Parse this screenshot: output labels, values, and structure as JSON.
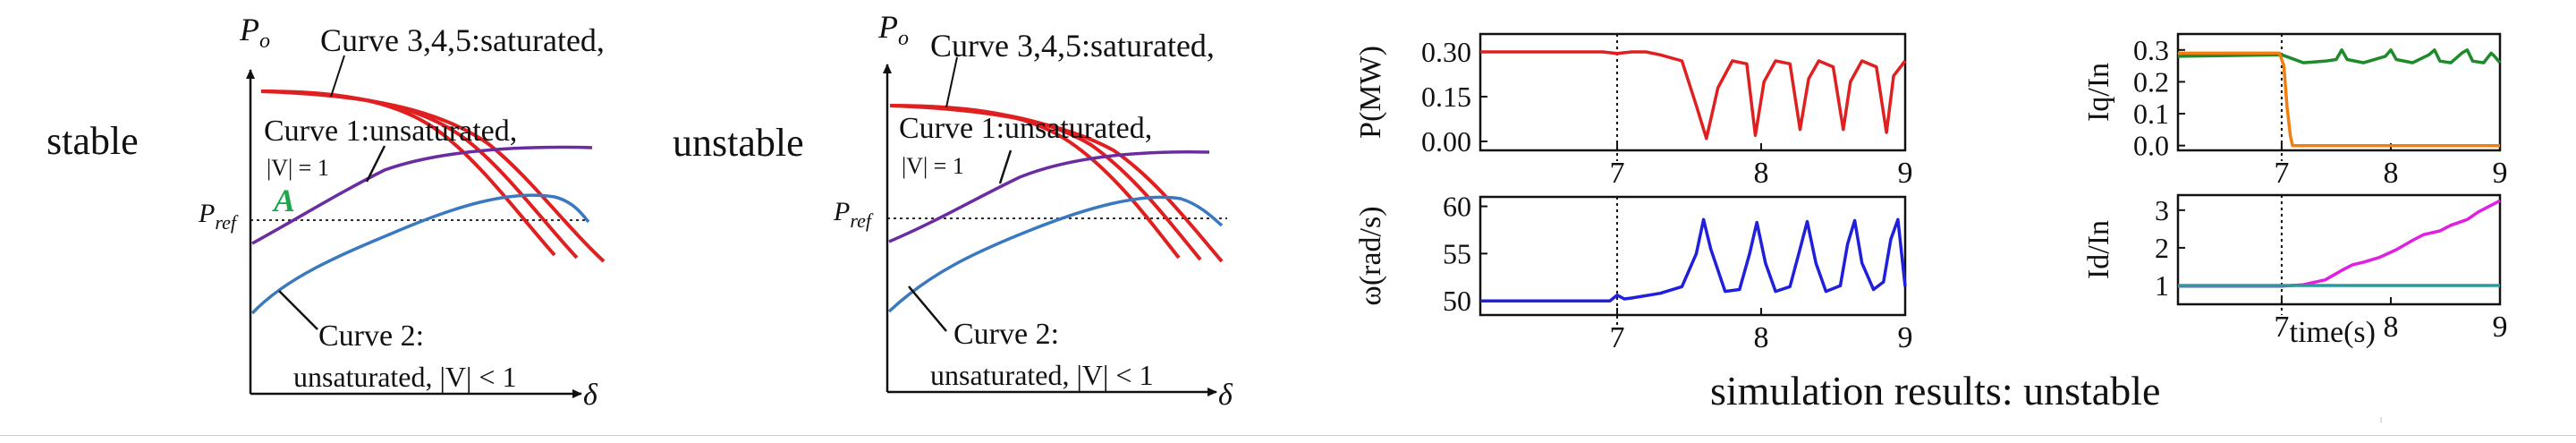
{
  "slide": {
    "left_panel": {
      "status_label": "stable",
      "y_label_main": "P",
      "y_label_sub": "o",
      "x_label": "δ",
      "pref_main": "P",
      "pref_sub": "ref",
      "point_label": "A",
      "curve345": "Curve 3,4,5:saturated,",
      "curve1_line1": "Curve 1:unsaturated,",
      "curve1_line2": "|V| = 1",
      "curve2_line1": "Curve 2:",
      "curve2_line2": "unsaturated, |V| < 1"
    },
    "middle_panel": {
      "status_label": "unstable",
      "y_label_main": "P",
      "y_label_sub": "o",
      "x_label": "δ",
      "pref_main": "P",
      "pref_sub": "ref",
      "curve345": "Curve 3,4,5:saturated,",
      "curve1_line1": "Curve 1:unsaturated,",
      "curve1_line2": "|V| = 1",
      "curve2_line1": "Curve 2:",
      "curve2_line2": "unsaturated, |V| < 1"
    },
    "results_caption": "simulation results: unstable",
    "page_number": "1",
    "colors": {
      "saturated": "#e02020",
      "unsaturated_v1": "#6a2ca0",
      "unsaturated_vlt1": "#3a78c0",
      "point_A": "#1ca84a",
      "p_trace": "#e02020",
      "omega_trace": "#1f1fdc",
      "iq_green": "#1f8a2a",
      "iq_orange": "#f07f10",
      "id_magenta": "#e020e0",
      "id_teal": "#2a9a9a"
    }
  },
  "chart_data": [
    {
      "type": "line",
      "name_key": "P",
      "ylabel": "P(MW)",
      "xlabel": "",
      "x_ticks": [
        "7",
        "8",
        "9"
      ],
      "y_ticks": [
        "0.00",
        "0.15",
        "0.30"
      ],
      "xlim": [
        6.05,
        9
      ],
      "ylim": [
        -0.03,
        0.36
      ],
      "event_line_x": 7,
      "series": [
        {
          "color": "#e02020",
          "x": [
            6.05,
            6.9,
            7.0,
            7.1,
            7.2,
            7.3,
            7.45,
            7.55,
            7.62,
            7.7,
            7.8,
            7.9,
            7.96,
            8.02,
            8.1,
            8.2,
            8.27,
            8.33,
            8.4,
            8.5,
            8.57,
            8.62,
            8.7,
            8.8,
            8.87,
            8.92,
            9.0
          ],
          "y": [
            0.3,
            0.3,
            0.295,
            0.3,
            0.3,
            0.29,
            0.27,
            0.12,
            0.01,
            0.18,
            0.27,
            0.26,
            0.02,
            0.2,
            0.27,
            0.26,
            0.04,
            0.21,
            0.27,
            0.25,
            0.04,
            0.2,
            0.27,
            0.25,
            0.03,
            0.22,
            0.27
          ]
        }
      ]
    },
    {
      "type": "line",
      "name_key": "omega",
      "ylabel": "ω(rad/s)",
      "xlabel": "",
      "x_ticks": [
        "7",
        "8",
        "9"
      ],
      "y_ticks": [
        "50",
        "55",
        "60"
      ],
      "xlim": [
        6.05,
        9
      ],
      "ylim": [
        48.5,
        61
      ],
      "event_line_x": 7,
      "series": [
        {
          "color": "#1f1fdc",
          "x": [
            6.05,
            6.95,
            7.0,
            7.05,
            7.1,
            7.3,
            7.45,
            7.55,
            7.6,
            7.65,
            7.75,
            7.85,
            7.92,
            7.97,
            8.03,
            8.1,
            8.2,
            8.27,
            8.32,
            8.38,
            8.45,
            8.55,
            8.6,
            8.65,
            8.7,
            8.78,
            8.85,
            8.9,
            8.95,
            9.0
          ],
          "y": [
            50.0,
            50.0,
            50.6,
            50.2,
            50.3,
            50.8,
            51.5,
            55.0,
            58.6,
            55.5,
            51.0,
            51.2,
            55.0,
            58.3,
            54.0,
            51.0,
            51.5,
            55.5,
            58.4,
            54.0,
            51.0,
            51.6,
            56.0,
            58.5,
            54.0,
            51.2,
            52.0,
            56.5,
            58.6,
            51.5
          ]
        }
      ]
    },
    {
      "type": "line",
      "name_key": "Iq",
      "ylabel": "Iq/In",
      "xlabel": "",
      "x_ticks": [
        "7",
        "8",
        "9"
      ],
      "y_ticks": [
        "0.0",
        "0.1",
        "0.2",
        "0.3"
      ],
      "xlim": [
        6.05,
        9
      ],
      "ylim": [
        -0.015,
        0.35
      ],
      "event_line_x": 7,
      "series": [
        {
          "color": "#1f8a2a",
          "x": [
            6.05,
            7.0,
            7.2,
            7.4,
            7.5,
            7.55,
            7.6,
            7.75,
            7.95,
            8.0,
            8.05,
            8.2,
            8.35,
            8.4,
            8.45,
            8.55,
            8.65,
            8.7,
            8.75,
            8.85,
            8.92,
            8.95,
            9.0
          ],
          "y": [
            0.28,
            0.285,
            0.26,
            0.265,
            0.27,
            0.3,
            0.27,
            0.26,
            0.28,
            0.3,
            0.27,
            0.26,
            0.285,
            0.3,
            0.265,
            0.26,
            0.29,
            0.3,
            0.265,
            0.26,
            0.29,
            0.28,
            0.26
          ]
        },
        {
          "color": "#f07f10",
          "x": [
            6.05,
            6.98,
            7.02,
            7.05,
            7.08,
            7.1,
            9.0
          ],
          "y": [
            0.29,
            0.29,
            0.25,
            0.12,
            0.03,
            0.0,
            0.0
          ]
        }
      ]
    },
    {
      "type": "line",
      "name_key": "Id",
      "ylabel": "Id/In",
      "xlabel": "time(s)",
      "x_ticks": [
        "7",
        "8",
        "9"
      ],
      "y_ticks": [
        "1",
        "2",
        "3"
      ],
      "xlim": [
        6.05,
        9
      ],
      "ylim": [
        0.5,
        3.4
      ],
      "event_line_x": 7,
      "series": [
        {
          "color": "#e020e0",
          "x": [
            6.05,
            7.0,
            7.2,
            7.4,
            7.55,
            7.65,
            7.75,
            7.9,
            8.05,
            8.2,
            8.3,
            8.45,
            8.55,
            8.7,
            8.8,
            8.9,
            9.0
          ],
          "y": [
            0.98,
            0.98,
            1.02,
            1.15,
            1.4,
            1.55,
            1.62,
            1.75,
            1.95,
            2.2,
            2.35,
            2.45,
            2.6,
            2.75,
            2.95,
            3.1,
            3.25
          ]
        },
        {
          "color": "#2a9a9a",
          "x": [
            6.05,
            9.0
          ],
          "y": [
            1.0,
            1.0
          ]
        }
      ]
    }
  ]
}
